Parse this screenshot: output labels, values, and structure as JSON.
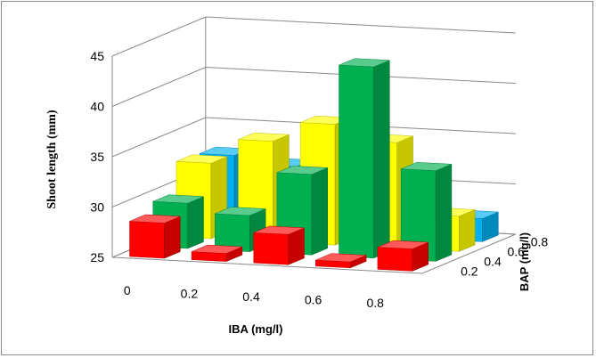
{
  "chart_data": {
    "type": "bar3d",
    "title": "",
    "xlabel": "IBA (mg/l)",
    "ylabel": "Shoot length (mm)",
    "zlabel": "BAP (mg/l)",
    "x_categories": [
      "0",
      "0.2",
      "0.4",
      "0.6",
      "0.8"
    ],
    "z_categories": [
      "0.2",
      "0.4",
      "0.6",
      "0.8"
    ],
    "y_ticks": [
      "25",
      "30",
      "35",
      "40",
      "45"
    ],
    "ylim": [
      25,
      45
    ],
    "grid": true,
    "legend": "none",
    "series": [
      {
        "bap": "0.2",
        "color": "#ff0000",
        "values": [
          28.5,
          25.8,
          28.0,
          25.6,
          27.2
        ]
      },
      {
        "bap": "0.4",
        "color": "#00b050",
        "values": [
          29.5,
          28.6,
          33.0,
          44.0,
          34.0
        ]
      },
      {
        "bap": "0.6",
        "color": "#ffff00",
        "values": [
          32.5,
          35.0,
          37.0,
          35.5,
          28.5
        ]
      },
      {
        "bap": "0.8",
        "color": "#00b0f0",
        "values": [
          32.3,
          31.5,
          30.5,
          30.0,
          27.3
        ]
      }
    ]
  }
}
